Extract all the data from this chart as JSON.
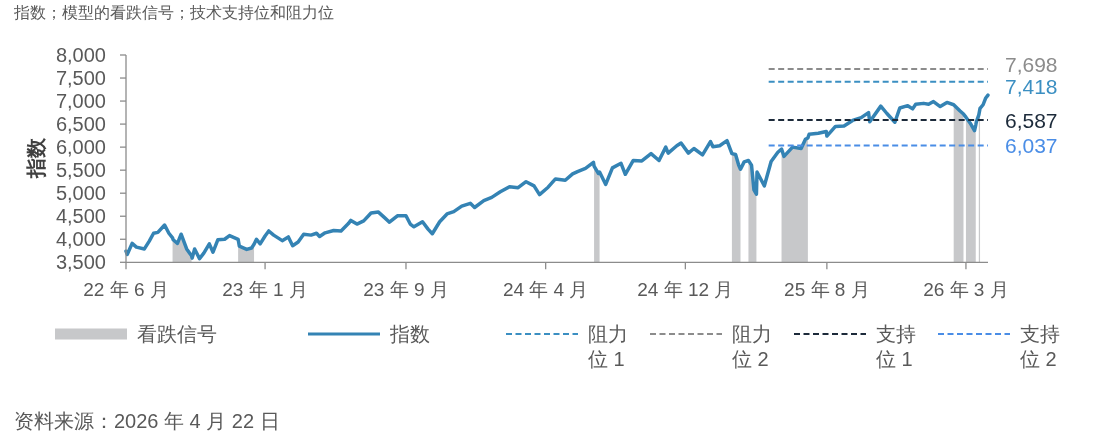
{
  "chart_data": {
    "type": "line",
    "title": "指数；模型的看跌信号；技术支持位和阻力位",
    "ylabel": "指数",
    "annotations": [
      "资料来源：2026 年 4 月 22 日"
    ],
    "xlim": [
      "2022-06-14",
      "2026-04-21"
    ],
    "xticks": [
      {
        "value": "2022-06-14",
        "label": "22 年 6 月"
      },
      {
        "value": "2023-01-27",
        "label": "23 年 1 月"
      },
      {
        "value": "2023-09-14",
        "label": "23 年 9 月"
      },
      {
        "value": "2024-04-29",
        "label": "24 年 4 月"
      },
      {
        "value": "2024-12-13",
        "label": "24 年 12 月"
      },
      {
        "value": "2025-08-01",
        "label": "25 年 8 月"
      },
      {
        "value": "2026-03-16",
        "label": "26 年 3 月"
      }
    ],
    "ylim": [
      3500,
      8000
    ],
    "yticks": [
      {
        "value": 3500,
        "label": "3,500"
      },
      {
        "value": 4000,
        "label": "4,000"
      },
      {
        "value": 4500,
        "label": "4,500"
      },
      {
        "value": 5000,
        "label": "5,000"
      },
      {
        "value": 5500,
        "label": "5,500"
      },
      {
        "value": 6000,
        "label": "6,000"
      },
      {
        "value": 6500,
        "label": "6,500"
      },
      {
        "value": 7000,
        "label": "7,000"
      },
      {
        "value": 7500,
        "label": "7,500"
      },
      {
        "value": 8000,
        "label": "8,000"
      }
    ],
    "legend": "bottom",
    "x": [
      "2022-06-14",
      "2022-06-16",
      "2022-06-24",
      "2022-07-01",
      "2022-07-14",
      "2022-07-22",
      "2022-07-29",
      "2022-08-05",
      "2022-08-16",
      "2022-08-23",
      "2022-08-29",
      "2022-08-30",
      "2022-09-06",
      "2022-09-12",
      "2022-09-21",
      "2022-09-29",
      "2022-09-30",
      "2022-10-04",
      "2022-10-12",
      "2022-10-19",
      "2022-10-28",
      "2022-11-03",
      "2022-11-11",
      "2022-11-22",
      "2022-11-30",
      "2022-12-14",
      "2022-12-16",
      "2022-12-28",
      "2023-01-05",
      "2023-01-09",
      "2023-01-13",
      "2023-01-19",
      "2023-01-27",
      "2023-02-02",
      "2023-02-10",
      "2023-02-24",
      "2023-03-06",
      "2023-03-13",
      "2023-03-22",
      "2023-03-31",
      "2023-04-12",
      "2023-04-21",
      "2023-04-26",
      "2023-05-05",
      "2023-05-19",
      "2023-05-31",
      "2023-06-12",
      "2023-06-16",
      "2023-06-26",
      "2023-07-07",
      "2023-07-19",
      "2023-07-31",
      "2023-08-10",
      "2023-08-18",
      "2023-08-31",
      "2023-09-14",
      "2023-09-21",
      "2023-09-27",
      "2023-10-11",
      "2023-10-20",
      "2023-10-27",
      "2023-11-08",
      "2023-11-20",
      "2023-12-01",
      "2023-12-14",
      "2023-12-28",
      "2024-01-04",
      "2024-01-19",
      "2024-02-01",
      "2024-02-15",
      "2024-03-01",
      "2024-03-15",
      "2024-03-28",
      "2024-04-10",
      "2024-04-19",
      "2024-05-03",
      "2024-05-15",
      "2024-05-31",
      "2024-06-12",
      "2024-06-20",
      "2024-07-03",
      "2024-07-16",
      "2024-07-17",
      "2024-07-24",
      "2024-07-26",
      "2024-08-05",
      "2024-08-16",
      "2024-08-30",
      "2024-09-06",
      "2024-09-19",
      "2024-10-03",
      "2024-10-18",
      "2024-10-31",
      "2024-11-11",
      "2024-11-15",
      "2024-11-29",
      "2024-12-06",
      "2024-12-18",
      "2024-12-27",
      "2025-01-10",
      "2025-01-23",
      "2025-01-27",
      "2025-02-07",
      "2025-02-19",
      "2025-02-27",
      "2025-03-05",
      "2025-03-10",
      "2025-03-13",
      "2025-03-19",
      "2025-03-26",
      "2025-03-31",
      "2025-04-04",
      "2025-04-08",
      "2025-04-09",
      "2025-04-21",
      "2025-05-02",
      "2025-05-13",
      "2025-05-19",
      "2025-05-23",
      "2025-06-06",
      "2025-06-20",
      "2025-06-27",
      "2025-07-01",
      "2025-07-03",
      "2025-07-18",
      "2025-07-31",
      "2025-08-01",
      "2025-08-15",
      "2025-08-29",
      "2025-09-12",
      "2025-09-26",
      "2025-10-08",
      "2025-10-10",
      "2025-10-28",
      "2025-11-07",
      "2025-11-20",
      "2025-11-28",
      "2025-12-11",
      "2025-12-19",
      "2025-12-24",
      "2026-01-06",
      "2026-01-14",
      "2026-01-22",
      "2026-02-02",
      "2026-02-13",
      "2026-02-24",
      "2026-03-06",
      "2026-03-12",
      "2026-03-13",
      "2026-03-16",
      "2026-03-23",
      "2026-03-30",
      "2026-04-01",
      "2026-04-02",
      "2026-04-06",
      "2026-04-08",
      "2026-04-13",
      "2026-04-17",
      "2026-04-21"
    ],
    "series": [
      {
        "name": "看跌信号",
        "type": "area",
        "color": "#c7c8ca",
        "values": [
          null,
          null,
          null,
          null,
          null,
          null,
          null,
          null,
          null,
          null,
          4030,
          3990,
          3910,
          4110,
          3790,
          3640,
          null,
          null,
          null,
          null,
          null,
          null,
          null,
          null,
          null,
          4000,
          3850,
          3780,
          3810,
          3890,
          null,
          null,
          null,
          null,
          null,
          null,
          null,
          null,
          null,
          null,
          null,
          null,
          null,
          null,
          null,
          null,
          null,
          null,
          null,
          null,
          null,
          null,
          null,
          null,
          null,
          null,
          null,
          null,
          null,
          null,
          null,
          null,
          null,
          null,
          null,
          null,
          null,
          null,
          null,
          null,
          null,
          null,
          null,
          null,
          null,
          null,
          null,
          null,
          null,
          null,
          null,
          null,
          5590,
          5430,
          5460,
          null,
          null,
          null,
          null,
          null,
          null,
          null,
          null,
          null,
          null,
          null,
          null,
          null,
          null,
          null,
          null,
          null,
          null,
          null,
          5860,
          5840,
          5610,
          5520,
          null,
          5710,
          5610,
          5070,
          4980,
          null,
          null,
          null,
          null,
          5960,
          5800,
          6000,
          5970,
          6170,
          6200,
          null,
          null,
          null,
          null,
          null,
          null,
          null,
          null,
          null,
          null,
          null,
          null,
          null,
          null,
          null,
          null,
          null,
          null,
          null,
          null,
          null,
          null,
          6920,
          6790,
          6720,
          null,
          6650,
          6520,
          6360,
          6480,
          null,
          6700,
          6840,
          null,
          null,
          null
        ]
      },
      {
        "name": "指数",
        "color": "#3483b4",
        "values": [
          3740,
          3670,
          3910,
          3830,
          3790,
          3960,
          4130,
          4150,
          4310,
          4130,
          4030,
          3990,
          3910,
          4110,
          3790,
          3640,
          3590,
          3790,
          3580,
          3700,
          3900,
          3720,
          3990,
          4000,
          4080,
          4000,
          3850,
          3780,
          3810,
          3890,
          4000,
          3900,
          4070,
          4180,
          4090,
          3970,
          4050,
          3860,
          3940,
          4110,
          4090,
          4130,
          4060,
          4140,
          4190,
          4180,
          4340,
          4410,
          4330,
          4400,
          4570,
          4590,
          4470,
          4370,
          4510,
          4510,
          4330,
          4270,
          4380,
          4220,
          4120,
          4380,
          4550,
          4600,
          4720,
          4780,
          4690,
          4840,
          4910,
          5030,
          5140,
          5120,
          5250,
          5160,
          4970,
          5130,
          5310,
          5280,
          5420,
          5470,
          5540,
          5670,
          5590,
          5430,
          5460,
          5190,
          5550,
          5650,
          5410,
          5710,
          5700,
          5860,
          5710,
          6000,
          5870,
          6030,
          6090,
          5870,
          5970,
          5830,
          6120,
          6010,
          6030,
          6140,
          5860,
          5840,
          5610,
          5520,
          5680,
          5710,
          5610,
          5070,
          4980,
          5460,
          5160,
          5690,
          5890,
          5960,
          5800,
          6000,
          5970,
          6170,
          6200,
          6280,
          6300,
          6340,
          6240,
          6450,
          6460,
          6580,
          6640,
          6750,
          6550,
          6890,
          6730,
          6540,
          6850,
          6900,
          6830,
          6930,
          6950,
          6930,
          6990,
          6880,
          6970,
          6920,
          6790,
          6720,
          6700,
          6650,
          6520,
          6360,
          6480,
          6550,
          6700,
          6840,
          6920,
          7060,
          7130
        ]
      },
      {
        "name": "阻力位 1",
        "color": "#3b8fc2",
        "line_style": "dashed",
        "x": [
          "2025-04-28",
          "2026-04-21"
        ],
        "values": [
          7418,
          7418
        ],
        "value_labels": [
          null,
          "7,418"
        ]
      },
      {
        "name": "阻力位 2",
        "color": "#8c8c8c",
        "line_style": "dashed",
        "x": [
          "2025-04-28",
          "2026-04-21"
        ],
        "values": [
          7698,
          7698
        ],
        "value_labels": [
          null,
          "7,698"
        ]
      },
      {
        "name": "支持位 1",
        "color": "#1c2a3a",
        "line_style": "dashed",
        "x": [
          "2025-04-28",
          "2026-04-21"
        ],
        "values": [
          6587,
          6587
        ],
        "value_labels": [
          null,
          "6,587"
        ]
      },
      {
        "name": "支持位 2",
        "color": "#4a8de6",
        "line_style": "dashed",
        "x": [
          "2025-04-28",
          "2026-04-21"
        ],
        "values": [
          6037,
          6037
        ],
        "value_labels": [
          null,
          "6,037"
        ]
      }
    ]
  }
}
